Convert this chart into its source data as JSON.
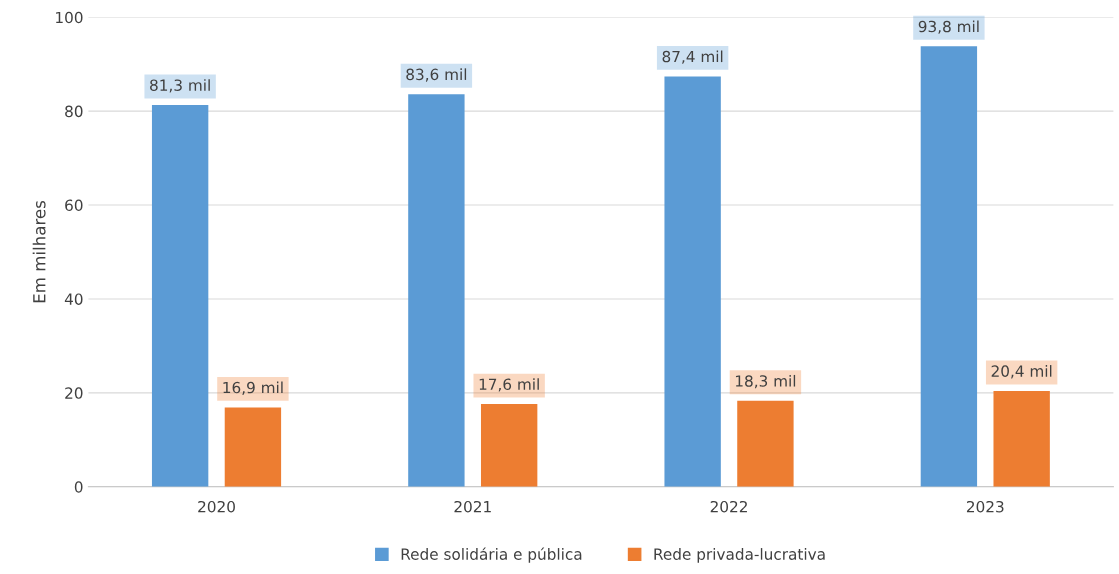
{
  "chart_data": {
    "type": "bar",
    "ylabel": "Em milhares",
    "categories": [
      "2020",
      "2021",
      "2022",
      "2023"
    ],
    "series": [
      {
        "name": "Rede solidária e pública",
        "color": "#5b9bd5",
        "values": [
          81.3,
          83.6,
          87.4,
          93.8
        ],
        "value_labels": [
          "81,3 mil",
          "83,6 mil",
          "87,4 mil",
          "93,8 mil"
        ]
      },
      {
        "name": "Rede privada-lucrativa",
        "color": "#ed7d31",
        "values": [
          16.9,
          17.6,
          18.3,
          20.4
        ],
        "value_labels": [
          "16,9 mil",
          "17,6 mil",
          "18,3 mil",
          "20,4 mil"
        ]
      }
    ],
    "ylim": [
      0,
      100
    ],
    "yticks": [
      0,
      20,
      40,
      60,
      80,
      100
    ],
    "grid": "y",
    "legend": "bottom"
  }
}
